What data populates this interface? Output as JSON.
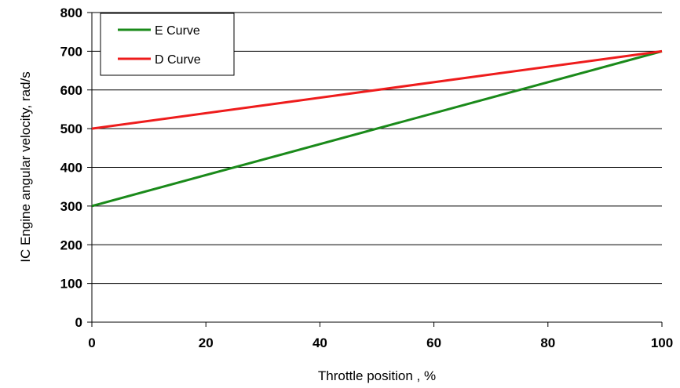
{
  "chart_data": {
    "type": "line",
    "title": "",
    "xlabel": "Throttle position , %",
    "ylabel": "IC Engine angular velocity, rad/s",
    "xlim": [
      0,
      100
    ],
    "ylim": [
      0,
      800
    ],
    "x_ticks": [
      0,
      20,
      40,
      60,
      80,
      100
    ],
    "y_ticks": [
      0,
      100,
      200,
      300,
      400,
      500,
      600,
      700,
      800
    ],
    "grid": "horizontal",
    "legend_position": "top-left",
    "series": [
      {
        "name": "E Curve",
        "color": "#1a8a1a",
        "x": [
          0,
          100
        ],
        "y": [
          300,
          700
        ]
      },
      {
        "name": "D Curve",
        "color": "#ee1c1c",
        "x": [
          0,
          100
        ],
        "y": [
          500,
          700
        ]
      }
    ]
  }
}
